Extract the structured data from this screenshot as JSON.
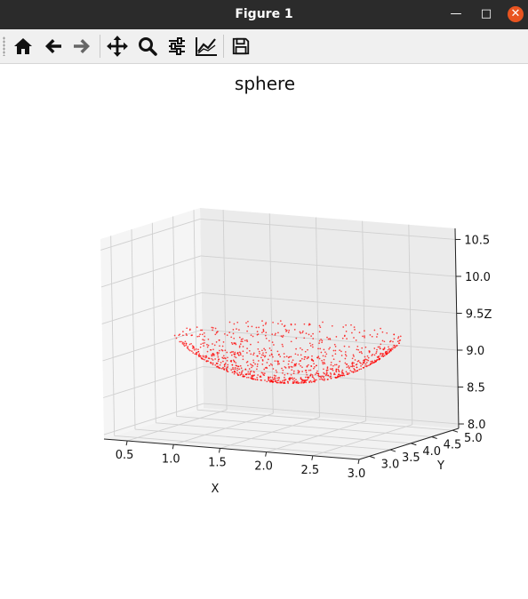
{
  "window": {
    "title": "Figure 1"
  },
  "toolbar": {
    "items": [
      {
        "icon": "home-icon"
      },
      {
        "icon": "back-arrow-icon"
      },
      {
        "icon": "forward-arrow-icon"
      },
      {
        "icon": "pan-move-icon"
      },
      {
        "icon": "zoom-magnifier-icon"
      },
      {
        "icon": "configure-subplots-icon"
      },
      {
        "icon": "edit-axis-lines-icon"
      },
      {
        "icon": "save-floppy-icon"
      }
    ]
  },
  "chart_data": {
    "type": "scatter3d",
    "title": "sphere",
    "xlabel": "X",
    "ylabel": "Y",
    "zlabel": "Z",
    "x_ticks": [
      "0.5",
      "1.0",
      "1.5",
      "2.0",
      "2.5",
      "3.0"
    ],
    "y_ticks": [
      "3.0",
      "3.5",
      "4.0",
      "4.5",
      "5.0"
    ],
    "z_ticks": [
      "8.0",
      "8.5",
      "9.0",
      "9.5",
      "10.0",
      "10.5"
    ],
    "xlim": [
      0.25,
      3.05
    ],
    "ylim": [
      2.75,
      5.15
    ],
    "zlim": [
      7.85,
      10.65
    ],
    "grid": true,
    "point_color": "#ff0000",
    "point_count": 1000,
    "sphere": {
      "center": [
        1.7,
        4.0,
        10.0
      ],
      "radius": 1.35,
      "shown_part": "lower cap, z <= 9.25"
    }
  }
}
